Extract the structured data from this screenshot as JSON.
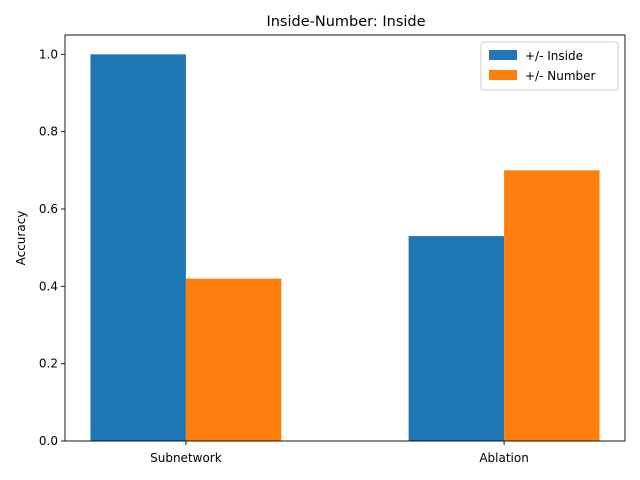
{
  "chart_data": {
    "type": "bar",
    "title": "Inside-Number: Inside",
    "xlabel": "",
    "ylabel": "Accuracy",
    "categories": [
      "Subnetwork",
      "Ablation"
    ],
    "series": [
      {
        "name": "+/- Inside",
        "values": [
          1.0,
          0.53
        ],
        "color": "#1f77b4"
      },
      {
        "name": "+/- Number",
        "values": [
          0.42,
          0.7
        ],
        "color": "#ff7f0e"
      }
    ],
    "ylim": [
      0,
      1.05
    ],
    "yticks": [
      0.0,
      0.2,
      0.4,
      0.6,
      0.8,
      1.0
    ],
    "ytick_labels": [
      "0.0",
      "0.2",
      "0.4",
      "0.6",
      "0.8",
      "1.0"
    ],
    "grid": false,
    "legend_position": "top-right"
  }
}
